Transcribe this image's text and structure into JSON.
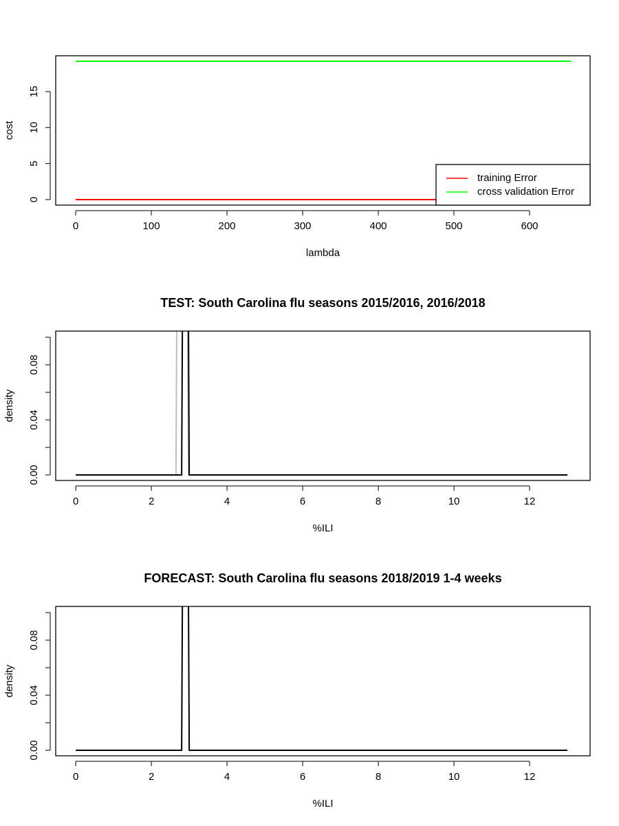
{
  "chart_data": [
    {
      "type": "line",
      "x_label": "lambda",
      "y_label": "cost",
      "xlim": [
        -26.4,
        680
      ],
      "ylim": [
        -0.77,
        19.97
      ],
      "xticks": [
        0,
        100,
        200,
        300,
        400,
        500,
        600
      ],
      "yticks": [
        0,
        5,
        10,
        15
      ],
      "legend": "bottomright",
      "series": [
        {
          "name": "training Error",
          "color": "#ff0000",
          "x": [
            0,
            655
          ],
          "values": [
            0,
            0
          ]
        },
        {
          "name": "cross validation Error",
          "color": "#00ff00",
          "x": [
            0,
            655
          ],
          "values": [
            19.2,
            19.2
          ]
        }
      ]
    },
    {
      "type": "line",
      "title": "TEST: South Carolina  flu seasons 2015/2016, 2016/2018",
      "x_label": "%ILI",
      "y_label": "density",
      "xlim": [
        -0.53,
        13.6
      ],
      "ylim": [
        -0.004,
        0.1045
      ],
      "xticks": [
        0,
        2,
        4,
        6,
        8,
        10,
        12
      ],
      "yticks": [
        {
          "value": 0,
          "label": "0.00"
        },
        {
          "value": 0.02,
          "label": null
        },
        {
          "value": 0.04,
          "label": "0.04"
        },
        {
          "value": 0.06,
          "label": null
        },
        {
          "value": 0.08,
          "label": "0.08"
        },
        {
          "value": 0.1,
          "label": null
        }
      ],
      "series": [
        {
          "color": "#bebebe",
          "x": [
            2.65,
            2.67,
            2.96,
            2.98
          ],
          "values": [
            0,
            0.11,
            0.11,
            0
          ]
        },
        {
          "color": "#000000",
          "x": [
            0,
            2.8,
            2.82,
            2.98,
            3.0,
            13
          ],
          "values": [
            0,
            0,
            0.11,
            0.11,
            0,
            0
          ]
        }
      ]
    },
    {
      "type": "line",
      "title": "FORECAST: South Carolina flu seasons 2018/2019 1-4 weeks",
      "x_label": "%ILI",
      "y_label": "density",
      "xlim": [
        -0.53,
        13.6
      ],
      "ylim": [
        -0.004,
        0.1045
      ],
      "xticks": [
        0,
        2,
        4,
        6,
        8,
        10,
        12
      ],
      "yticks": [
        {
          "value": 0,
          "label": "0.00"
        },
        {
          "value": 0.02,
          "label": null
        },
        {
          "value": 0.04,
          "label": "0.04"
        },
        {
          "value": 0.06,
          "label": null
        },
        {
          "value": 0.08,
          "label": "0.08"
        },
        {
          "value": 0.1,
          "label": null
        }
      ],
      "series": [
        {
          "color": "#000000",
          "x": [
            0,
            2.8,
            2.82,
            2.98,
            3.0,
            13
          ],
          "values": [
            0,
            0,
            0.11,
            0.11,
            0,
            0
          ]
        }
      ]
    }
  ]
}
